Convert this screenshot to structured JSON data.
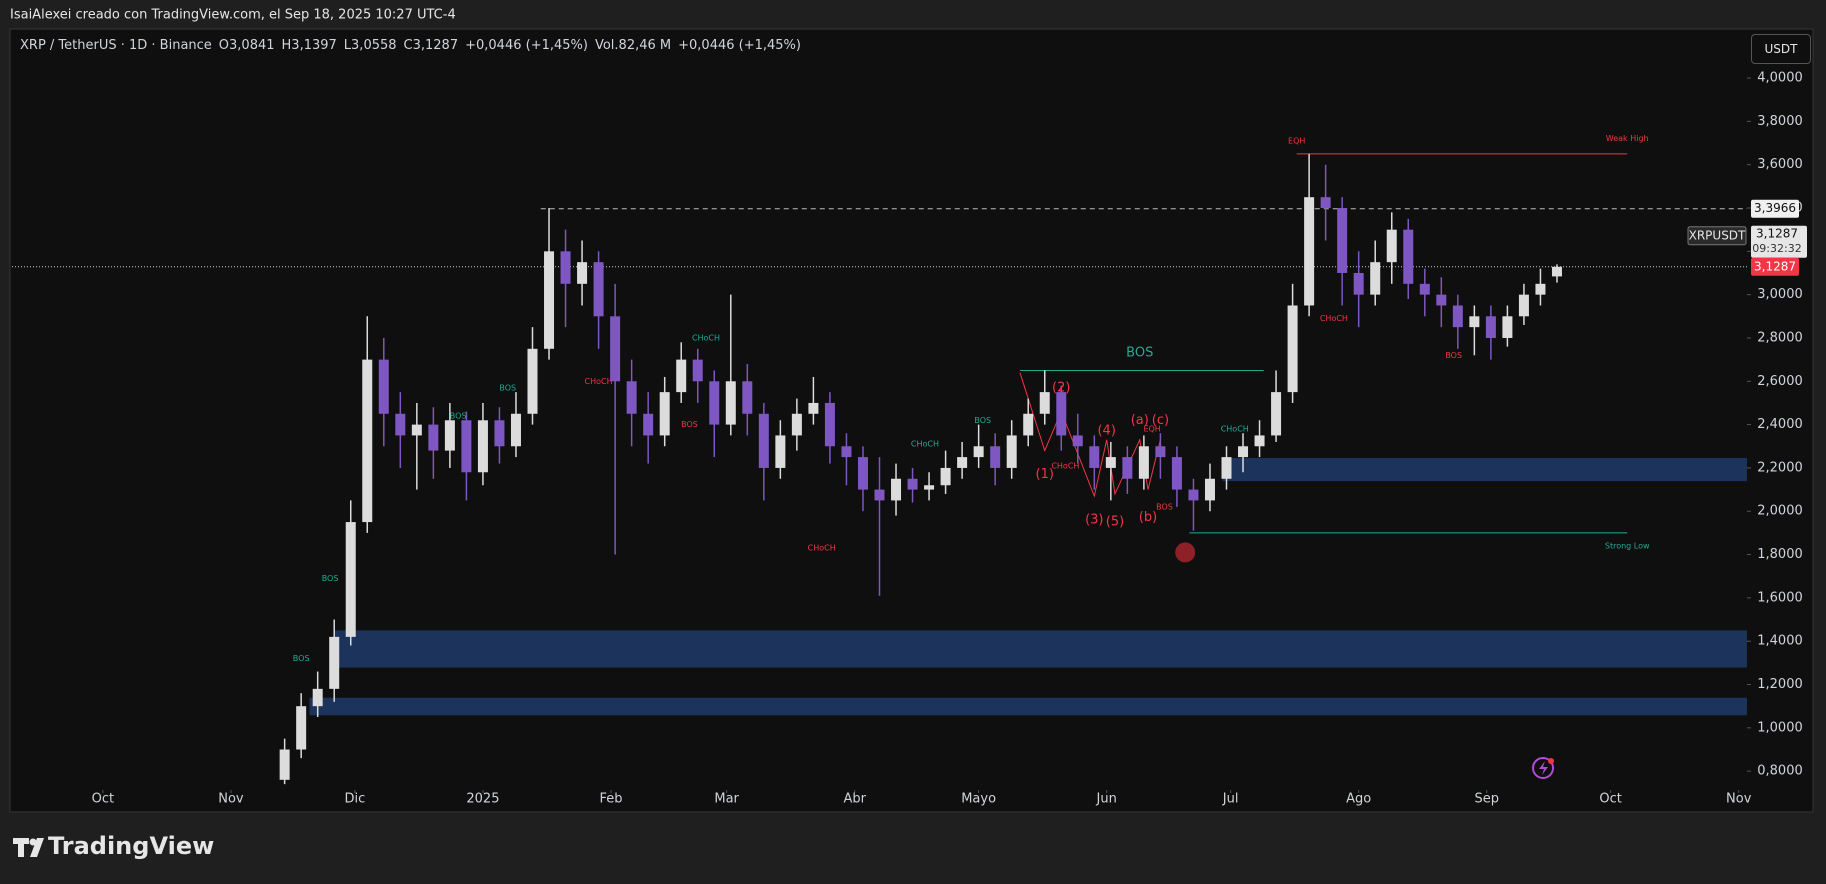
{
  "credit": "IsaiAlexei creado con TradingView.com, el Sep 18, 2025 10:27 UTC-4",
  "legend": {
    "symbol": "XRP / TetherUS · 1D · Binance",
    "open": "O3,0841",
    "high": "H3,1397",
    "low": "L3,0558",
    "close": "C3,1287",
    "change": "+0,0446 (+1,45%)",
    "volume": "Vol.82,46 M",
    "volume_change": "+0,0446 (+1,45%)"
  },
  "currency": "USDT",
  "brand": "TradingView",
  "chart_data": {
    "type": "candlestick",
    "up_color": "#dcdcdc",
    "down_color": "#7e57c2",
    "x": [
      44,
      48,
      52,
      56,
      60,
      64,
      68,
      72,
      76,
      80,
      84,
      88,
      92,
      96,
      100,
      104,
      108,
      112,
      116,
      120,
      124,
      128,
      132,
      136,
      140,
      144,
      148,
      152,
      156,
      160,
      164,
      168,
      172,
      176,
      180,
      184,
      188,
      192,
      196,
      200,
      204,
      208,
      212,
      216,
      220,
      224,
      228,
      232,
      236,
      240,
      244,
      248,
      252,
      256,
      260,
      264,
      268,
      272,
      276,
      280,
      284,
      288,
      292,
      296,
      300,
      304,
      308,
      312,
      316,
      320,
      324,
      328,
      332,
      336,
      340,
      344,
      348,
      352
    ],
    "open": [
      0.76,
      0.9,
      1.1,
      1.18,
      1.42,
      1.95,
      2.7,
      2.45,
      2.35,
      2.4,
      2.28,
      2.42,
      2.18,
      2.42,
      2.3,
      2.45,
      2.75,
      3.2,
      3.05,
      3.15,
      2.9,
      2.6,
      2.45,
      2.35,
      2.55,
      2.7,
      2.6,
      2.4,
      2.6,
      2.45,
      2.2,
      2.35,
      2.45,
      2.5,
      2.3,
      2.25,
      2.1,
      2.05,
      2.15,
      2.1,
      2.12,
      2.2,
      2.25,
      2.3,
      2.2,
      2.35,
      2.45,
      2.55,
      2.35,
      2.3,
      2.2,
      2.25,
      2.15,
      2.3,
      2.25,
      2.1,
      2.05,
      2.15,
      2.25,
      2.3,
      2.35,
      2.55,
      2.95,
      3.45,
      3.4,
      3.1,
      3.0,
      3.15,
      3.3,
      3.05,
      3.0,
      2.95,
      2.85,
      2.9,
      2.8,
      2.9,
      3.0,
      3.0841
    ],
    "high": [
      0.95,
      1.16,
      1.26,
      1.5,
      2.05,
      2.9,
      2.8,
      2.55,
      2.5,
      2.48,
      2.5,
      2.46,
      2.5,
      2.48,
      2.55,
      2.85,
      3.4,
      3.3,
      3.25,
      3.2,
      3.05,
      2.7,
      2.55,
      2.62,
      2.78,
      2.75,
      2.65,
      3.0,
      2.68,
      2.5,
      2.42,
      2.52,
      2.62,
      2.55,
      2.36,
      2.3,
      2.25,
      2.22,
      2.2,
      2.18,
      2.28,
      2.32,
      2.4,
      2.36,
      2.42,
      2.52,
      2.65,
      2.58,
      2.45,
      2.35,
      2.32,
      2.3,
      2.35,
      2.36,
      2.3,
      2.15,
      2.22,
      2.3,
      2.36,
      2.42,
      2.65,
      3.05,
      3.65,
      3.6,
      3.45,
      3.2,
      3.25,
      3.38,
      3.35,
      3.12,
      3.08,
      3.0,
      2.95,
      2.95,
      2.95,
      3.05,
      3.12,
      3.1397
    ],
    "low": [
      0.74,
      0.86,
      1.05,
      1.12,
      1.38,
      1.9,
      2.3,
      2.2,
      2.1,
      2.15,
      2.2,
      2.05,
      2.12,
      2.22,
      2.25,
      2.4,
      2.7,
      2.85,
      2.95,
      2.75,
      1.8,
      2.3,
      2.22,
      2.3,
      2.5,
      2.5,
      2.25,
      2.35,
      2.35,
      2.05,
      2.15,
      2.28,
      2.4,
      2.22,
      2.12,
      2.0,
      1.61,
      1.98,
      2.04,
      2.05,
      2.08,
      2.15,
      2.2,
      2.12,
      2.15,
      2.3,
      2.4,
      2.28,
      2.22,
      2.1,
      2.05,
      2.08,
      2.1,
      2.15,
      2.02,
      1.91,
      2.0,
      2.1,
      2.18,
      2.25,
      2.32,
      2.5,
      2.9,
      3.25,
      2.95,
      2.85,
      2.95,
      3.05,
      2.98,
      2.9,
      2.85,
      2.75,
      2.72,
      2.7,
      2.76,
      2.86,
      2.95,
      3.0558
    ],
    "close": [
      0.9,
      1.1,
      1.18,
      1.42,
      1.95,
      2.7,
      2.45,
      2.35,
      2.4,
      2.28,
      2.42,
      2.18,
      2.42,
      2.3,
      2.45,
      2.75,
      3.2,
      3.05,
      3.15,
      2.9,
      2.6,
      2.45,
      2.35,
      2.55,
      2.7,
      2.6,
      2.4,
      2.6,
      2.45,
      2.2,
      2.35,
      2.45,
      2.5,
      2.3,
      2.25,
      2.1,
      2.05,
      2.15,
      2.1,
      2.12,
      2.2,
      2.25,
      2.3,
      2.2,
      2.35,
      2.45,
      2.55,
      2.35,
      2.3,
      2.2,
      2.25,
      2.15,
      2.3,
      2.25,
      2.1,
      2.05,
      2.15,
      2.25,
      2.3,
      2.35,
      2.55,
      2.95,
      3.45,
      3.4,
      3.1,
      3.0,
      3.15,
      3.3,
      3.05,
      3.0,
      2.95,
      2.85,
      2.9,
      2.8,
      2.9,
      3.0,
      3.05,
      3.1287
    ],
    "xlim": [
      -22,
      398
    ],
    "ylim": [
      0.713,
      4.208
    ],
    "grid": false,
    "xticks": [
      {
        "value": 0,
        "label": "Oct"
      },
      {
        "value": 31,
        "label": "Nov"
      },
      {
        "value": 61,
        "label": "Dic"
      },
      {
        "value": 92,
        "label": "2025"
      },
      {
        "value": 123,
        "label": "Feb"
      },
      {
        "value": 151,
        "label": "Mar"
      },
      {
        "value": 182,
        "label": "Abr"
      },
      {
        "value": 212,
        "label": "Mayo"
      },
      {
        "value": 243,
        "label": "Jun"
      },
      {
        "value": 273,
        "label": "Jul"
      },
      {
        "value": 304,
        "label": "Ago"
      },
      {
        "value": 335,
        "label": "Sep"
      },
      {
        "value": 365,
        "label": "Oct"
      },
      {
        "value": 396,
        "label": "Nov"
      }
    ],
    "yticks": [
      {
        "value": 0.8,
        "label": "0,8000"
      },
      {
        "value": 1.0,
        "label": "1,0000"
      },
      {
        "value": 1.2,
        "label": "1,2000"
      },
      {
        "value": 1.4,
        "label": "1,4000"
      },
      {
        "value": 1.6,
        "label": "1,6000"
      },
      {
        "value": 1.8,
        "label": "1,8000"
      },
      {
        "value": 2.0,
        "label": "2,0000"
      },
      {
        "value": 2.2,
        "label": "2,2000"
      },
      {
        "value": 2.4,
        "label": "2,4000"
      },
      {
        "value": 2.6,
        "label": "2,6000"
      },
      {
        "value": 2.8,
        "label": "2,8000"
      },
      {
        "value": 3.0,
        "label": "3,0000"
      },
      {
        "value": 3.2,
        "label": "3,2000"
      },
      {
        "value": 3.4,
        "label": "3,4000"
      },
      {
        "value": 3.6,
        "label": "3,6000"
      },
      {
        "value": 3.8,
        "label": "3,8000"
      },
      {
        "value": 4.0,
        "label": "4,0000"
      }
    ],
    "price_line": {
      "value": 3.3966,
      "label": "3,3966",
      "start": 106
    },
    "last_price": {
      "value": 3.1287,
      "label": "3,1287",
      "symbol": "XRPUSDT",
      "countdown": "09:32:32",
      "color": "#f23645"
    },
    "zones": [
      {
        "x": [
          271,
          398
        ],
        "y": [
          2.139,
          2.246
        ],
        "color": "#1e3a68"
      },
      {
        "x": [
          56,
          398
        ],
        "y": [
          1.278,
          1.45
        ],
        "color": "#1e3a68"
      },
      {
        "x": [
          50,
          398
        ],
        "y": [
          1.058,
          1.139
        ],
        "color": "#1e3a68"
      }
    ],
    "lines": [
      {
        "x": [
          289,
          369
        ],
        "y": [
          3.65,
          3.65
        ],
        "color": "#f23645"
      },
      {
        "x": [
          263,
          369
        ],
        "y": [
          1.9,
          1.9
        ],
        "color": "#22ab94"
      },
      {
        "x": [
          222,
          281
        ],
        "y": [
          2.65,
          2.65
        ],
        "color": "#22ab94"
      },
      {
        "x": [
          222,
          228,
          232,
          240,
          243,
          245,
          251,
          253,
          256
        ],
        "y": [
          2.64,
          2.28,
          2.46,
          2.07,
          2.33,
          2.08,
          2.33,
          2.1,
          2.33
        ],
        "color": "#f23645"
      }
    ],
    "structure_labels": [
      {
        "text": "EQH",
        "x": 289,
        "y": 3.71,
        "color": "#f23645"
      },
      {
        "text": "Weak High",
        "x": 369,
        "y": 3.72,
        "color": "#f23645"
      },
      {
        "text": "Strong Low",
        "x": 369,
        "y": 1.84,
        "color": "#22ab94"
      },
      {
        "text": "BOS",
        "x": 48,
        "y": 1.32,
        "color": "#22ab94"
      },
      {
        "text": "BOS",
        "x": 55,
        "y": 1.69,
        "color": "#22ab94"
      },
      {
        "text": "BOS",
        "x": 86,
        "y": 2.44,
        "color": "#22ab94"
      },
      {
        "text": "BOS",
        "x": 98,
        "y": 2.57,
        "color": "#22ab94"
      },
      {
        "text": "CHoCH",
        "x": 120,
        "y": 2.6,
        "color": "#f23645"
      },
      {
        "text": "BOS",
        "x": 142,
        "y": 2.4,
        "color": "#f23645"
      },
      {
        "text": "CHoCH",
        "x": 146,
        "y": 2.8,
        "color": "#22ab94"
      },
      {
        "text": "CHoCH",
        "x": 174,
        "y": 1.83,
        "color": "#f23645"
      },
      {
        "text": "CHoCH",
        "x": 199,
        "y": 2.31,
        "color": "#22ab94"
      },
      {
        "text": "BOS",
        "x": 213,
        "y": 2.42,
        "color": "#22ab94"
      },
      {
        "text": "CHoCH",
        "x": 233,
        "y": 2.21,
        "color": "#f23645"
      },
      {
        "text": "EQH",
        "x": 254,
        "y": 2.38,
        "color": "#f23645"
      },
      {
        "text": "BOS",
        "x": 257,
        "y": 2.02,
        "color": "#f23645"
      },
      {
        "text": "CHoCH",
        "x": 274,
        "y": 2.38,
        "color": "#22ab94"
      },
      {
        "text": "CHoCH",
        "x": 298,
        "y": 2.89,
        "color": "#f23645"
      },
      {
        "text": "BOS",
        "x": 327,
        "y": 2.72,
        "color": "#f23645"
      }
    ],
    "big_labels": [
      {
        "text": "BOS",
        "x": 251,
        "y": 2.73,
        "color": "#22ab94"
      },
      {
        "text": "(1)",
        "x": 228,
        "y": 2.17,
        "color": "#f23645"
      },
      {
        "text": "(2)",
        "x": 232,
        "y": 2.57,
        "color": "#f23645"
      },
      {
        "text": "(3)",
        "x": 240,
        "y": 1.96,
        "color": "#f23645"
      },
      {
        "text": "(4)",
        "x": 243,
        "y": 2.37,
        "color": "#f23645"
      },
      {
        "text": "(5)",
        "x": 245,
        "y": 1.95,
        "color": "#f23645"
      },
      {
        "text": "(a)",
        "x": 251,
        "y": 2.42,
        "color": "#f23645"
      },
      {
        "text": "(b)",
        "x": 253,
        "y": 1.97,
        "color": "#f23645"
      },
      {
        "text": "(c)",
        "x": 256,
        "y": 2.42,
        "color": "#f23645"
      }
    ],
    "marker": {
      "x": 262,
      "y": 1.81,
      "color": "#8e2128"
    }
  }
}
